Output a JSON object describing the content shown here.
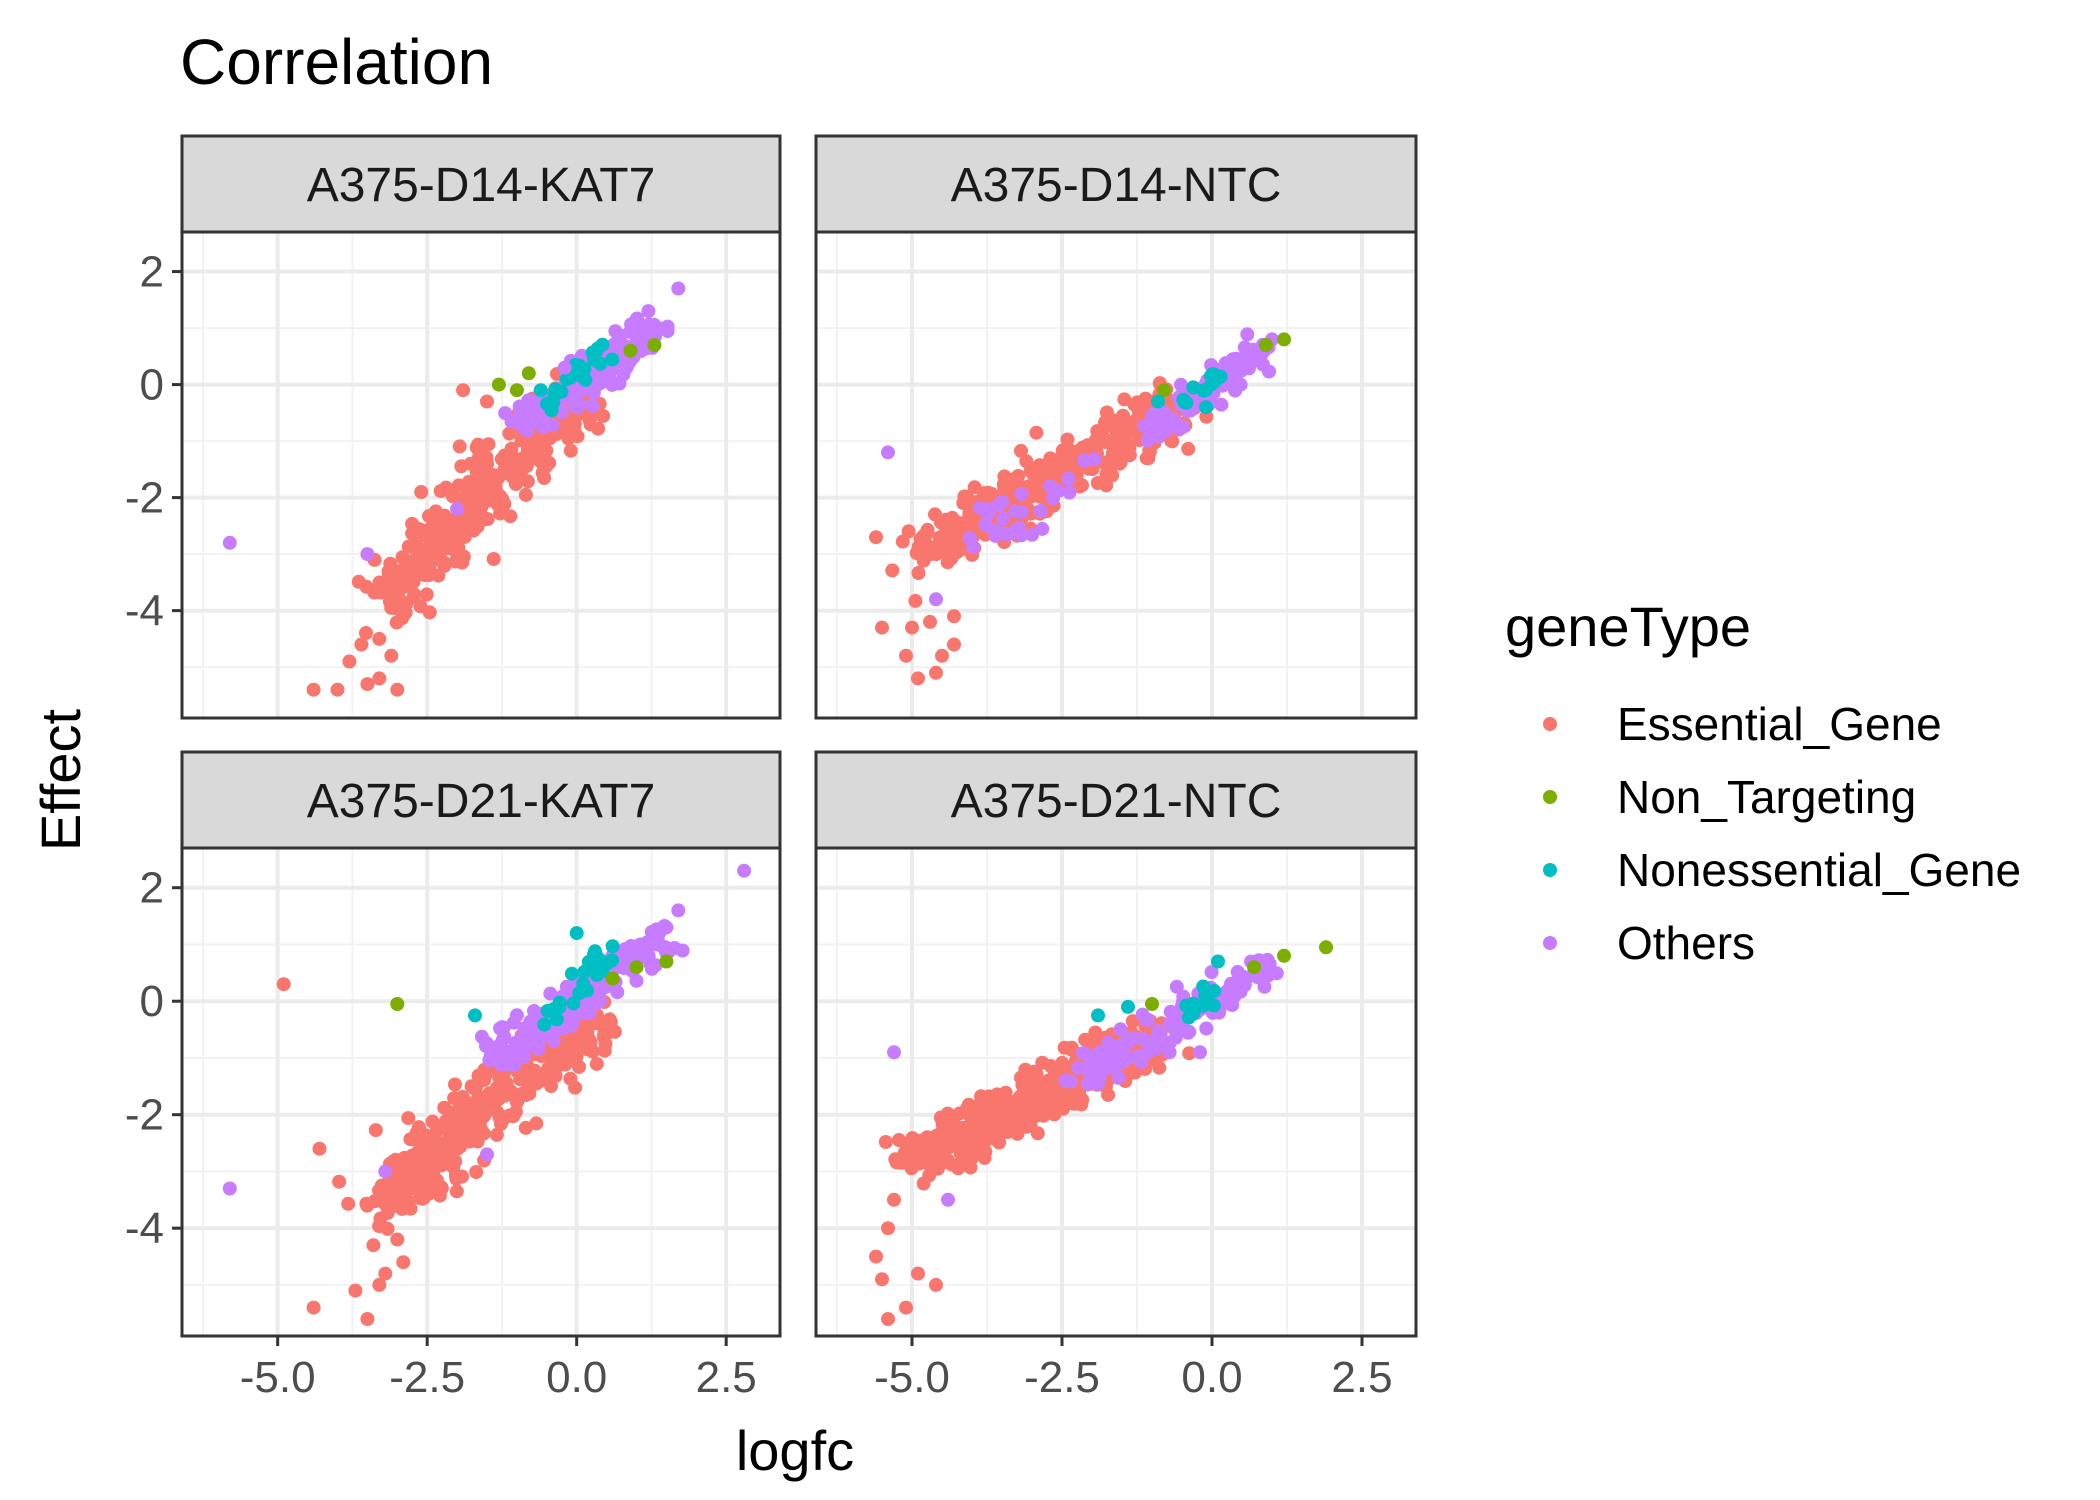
{
  "chart_data": {
    "type": "scatter",
    "title": "Correlation",
    "xlabel": "logfc",
    "ylabel": "Effect",
    "xlim": [
      -6.6,
      3.4
    ],
    "ylim": [
      -5.9,
      2.7
    ],
    "x_ticks": [
      -5.0,
      -2.5,
      0.0,
      2.5
    ],
    "x_tick_labels": [
      "-5.0",
      "-2.5",
      "0.0",
      "2.5"
    ],
    "y_ticks": [
      -4,
      -2,
      0,
      2
    ],
    "y_tick_labels": [
      "-4",
      "-2",
      "0",
      "2"
    ],
    "grid": true,
    "legend": {
      "title": "geneType",
      "position": "right",
      "entries": [
        {
          "name": "Essential_Gene",
          "color": "#F8766D"
        },
        {
          "name": "Non_Targeting",
          "color": "#7CAE00"
        },
        {
          "name": "Nonessential_Gene",
          "color": "#00BFC4"
        },
        {
          "name": "Others",
          "color": "#C77CFF"
        }
      ]
    },
    "panels": [
      {
        "name": "A375-D14-KAT7",
        "clusters": [
          {
            "geneType": "Essential_Gene",
            "x0": -3.2,
            "x1": 0.2,
            "y0": -3.8,
            "y1": 0.0,
            "spread": 0.45,
            "n": 380
          },
          {
            "geneType": "Others",
            "x0": -0.9,
            "x1": 1.2,
            "y0": -0.7,
            "y1": 1.0,
            "spread": 0.3,
            "n": 160
          },
          {
            "geneType": "Nonessential_Gene",
            "x0": -0.6,
            "x1": 0.4,
            "y0": -0.5,
            "y1": 0.7,
            "spread": 0.2,
            "n": 22
          }
        ],
        "points": [
          {
            "geneType": "Essential_Gene",
            "x": [
              -4.4,
              -4.0,
              -3.8,
              -3.6,
              -3.5,
              -3.3,
              -3.1,
              -3.0,
              -3.3,
              -1.9,
              -1.5,
              -2.6
            ],
            "y": [
              -5.4,
              -5.4,
              -4.9,
              -4.6,
              -5.3,
              -5.2,
              -4.8,
              -5.4,
              -4.5,
              -0.1,
              -0.3,
              -1.9
            ]
          },
          {
            "geneType": "Others",
            "x": [
              -5.8,
              -3.5,
              1.7,
              1.2,
              -0.2,
              -2.0
            ],
            "y": [
              -2.8,
              -3.0,
              1.7,
              1.3,
              0.3,
              -2.2
            ]
          },
          {
            "geneType": "Non_Targeting",
            "x": [
              -1.3,
              1.3,
              0.9,
              -0.8,
              -1.0
            ],
            "y": [
              0.0,
              0.7,
              0.6,
              0.2,
              -0.1
            ]
          },
          {
            "geneType": "Nonessential_Gene",
            "x": [
              -0.6
            ],
            "y": [
              -0.1
            ]
          }
        ]
      },
      {
        "name": "A375-D14-NTC",
        "clusters": [
          {
            "geneType": "Essential_Gene",
            "x0": -4.8,
            "x1": -0.5,
            "y0": -3.0,
            "y1": -0.3,
            "spread": 0.42,
            "n": 420
          },
          {
            "geneType": "Others",
            "x0": -1.0,
            "x1": 0.8,
            "y0": -0.8,
            "y1": 0.6,
            "spread": 0.25,
            "n": 110
          },
          {
            "geneType": "Others",
            "x0": -4.0,
            "x1": -2.0,
            "y0": -3.0,
            "y1": -1.5,
            "spread": 0.35,
            "n": 30
          },
          {
            "geneType": "Nonessential_Gene",
            "x0": -0.4,
            "x1": 0.4,
            "y0": -0.3,
            "y1": 0.5,
            "spread": 0.15,
            "n": 12
          }
        ],
        "points": [
          {
            "geneType": "Essential_Gene",
            "x": [
              -5.6,
              -5.5,
              -5.1,
              -4.9,
              -4.6,
              -4.5,
              -4.3,
              -4.7,
              -5.0,
              -4.3
            ],
            "y": [
              -2.7,
              -4.3,
              -4.8,
              -5.2,
              -5.1,
              -4.8,
              -4.6,
              -4.2,
              -4.3,
              -4.1
            ]
          },
          {
            "geneType": "Others",
            "x": [
              -5.4,
              -4.6,
              1.0
            ],
            "y": [
              -1.2,
              -3.8,
              0.8
            ]
          },
          {
            "geneType": "Non_Targeting",
            "x": [
              1.2,
              0.9,
              -0.8
            ],
            "y": [
              0.8,
              0.7,
              -0.1
            ]
          },
          {
            "geneType": "Nonessential_Gene",
            "x": [
              -0.9,
              -0.1
            ],
            "y": [
              -0.3,
              -0.4
            ]
          }
        ]
      },
      {
        "name": "A375-D21-KAT7",
        "clusters": [
          {
            "geneType": "Essential_Gene",
            "x0": -3.3,
            "x1": 0.3,
            "y0": -3.6,
            "y1": -0.2,
            "spread": 0.45,
            "n": 430
          },
          {
            "geneType": "Others",
            "x0": -1.3,
            "x1": 1.5,
            "y0": -1.0,
            "y1": 1.2,
            "spread": 0.3,
            "n": 200
          },
          {
            "geneType": "Nonessential_Gene",
            "x0": -0.6,
            "x1": 0.5,
            "y0": -0.5,
            "y1": 0.9,
            "spread": 0.2,
            "n": 25
          }
        ],
        "points": [
          {
            "geneType": "Essential_Gene",
            "x": [
              -4.9,
              -4.3,
              -4.4,
              -3.5,
              -3.7,
              -3.3,
              -3.2,
              -3.0,
              -3.4,
              -2.9
            ],
            "y": [
              0.3,
              -2.6,
              -5.4,
              -5.6,
              -5.1,
              -5.0,
              -4.8,
              -4.2,
              -4.3,
              -4.6
            ]
          },
          {
            "geneType": "Others",
            "x": [
              -5.8,
              2.8,
              1.7,
              1.5,
              -3.2,
              -1.5
            ],
            "y": [
              -3.3,
              2.3,
              1.6,
              1.3,
              -3.0,
              -2.7
            ]
          },
          {
            "geneType": "Non_Targeting",
            "x": [
              -3.0,
              1.5,
              1.0,
              0.6
            ],
            "y": [
              -0.05,
              0.7,
              0.6,
              0.4
            ]
          },
          {
            "geneType": "Nonessential_Gene",
            "x": [
              -1.7,
              0.0
            ],
            "y": [
              -0.25,
              1.2
            ]
          }
        ]
      },
      {
        "name": "A375-D21-NTC",
        "clusters": [
          {
            "geneType": "Essential_Gene",
            "x0": -5.0,
            "x1": -1.0,
            "y0": -2.8,
            "y1": -0.7,
            "spread": 0.4,
            "n": 450
          },
          {
            "geneType": "Others",
            "x0": -2.2,
            "x1": 1.0,
            "y0": -1.4,
            "y1": 0.7,
            "spread": 0.3,
            "n": 130
          },
          {
            "geneType": "Nonessential_Gene",
            "x0": -0.5,
            "x1": 0.4,
            "y0": -0.2,
            "y1": 0.6,
            "spread": 0.15,
            "n": 10
          }
        ],
        "points": [
          {
            "geneType": "Essential_Gene",
            "x": [
              -6.7,
              -5.6,
              -5.5,
              -5.4,
              -5.1,
              -4.9,
              -4.6,
              -5.4,
              -5.3
            ],
            "y": [
              -2.6,
              -4.5,
              -4.9,
              -5.6,
              -5.4,
              -4.8,
              -5.0,
              -4.0,
              -3.5
            ]
          },
          {
            "geneType": "Others",
            "x": [
              -5.3,
              -4.4,
              -0.2,
              -0.7
            ],
            "y": [
              -0.9,
              -3.5,
              -0.9,
              -0.4
            ]
          },
          {
            "geneType": "Non_Targeting",
            "x": [
              1.9,
              1.2,
              -1.0,
              0.7
            ],
            "y": [
              0.95,
              0.8,
              -0.05,
              0.6
            ]
          },
          {
            "geneType": "Nonessential_Gene",
            "x": [
              -1.9,
              -1.4,
              0.1
            ],
            "y": [
              -0.25,
              -0.1,
              0.7
            ]
          }
        ]
      }
    ]
  }
}
